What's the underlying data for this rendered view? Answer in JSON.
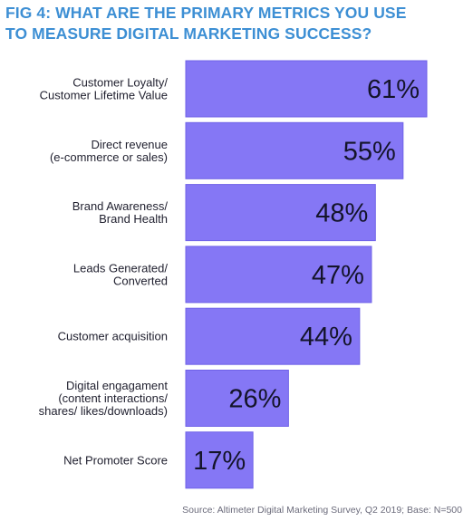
{
  "title_lines": [
    "FIG 4: WHAT ARE THE PRIMARY METRICS YOU USE",
    "TO MEASURE DIGITAL MARKETING SUCCESS?"
  ],
  "source": "Source: Altimeter Digital Marketing Survey, Q2 2019; Base: N=500",
  "colors": {
    "title": "#3d8fd4",
    "bar": "#8577f5",
    "bar_edge": "#6f62e8"
  },
  "chart_data": {
    "type": "bar",
    "orientation": "horizontal",
    "title": "FIG 4: WHAT ARE THE PRIMARY METRICS YOU USE TO MEASURE DIGITAL MARKETING SUCCESS?",
    "categories": [
      [
        "Customer Loyalty/",
        "Customer Lifetime Value"
      ],
      [
        "Direct revenue",
        "(e-commerce or sales)"
      ],
      [
        "Brand Awareness/",
        "Brand Health"
      ],
      [
        "Leads Generated/",
        "Converted"
      ],
      [
        "Customer acquisition"
      ],
      [
        "Digital engagament",
        "(content interactions/",
        "shares/ likes/downloads)"
      ],
      [
        "Net Promoter Score"
      ]
    ],
    "values": [
      61,
      55,
      48,
      47,
      44,
      26,
      17
    ],
    "value_labels": [
      "61%",
      "55%",
      "48%",
      "47%",
      "44%",
      "26%",
      "17%"
    ],
    "unit": "%",
    "xlim": [
      0,
      61
    ],
    "grid": false,
    "legend": "none"
  }
}
